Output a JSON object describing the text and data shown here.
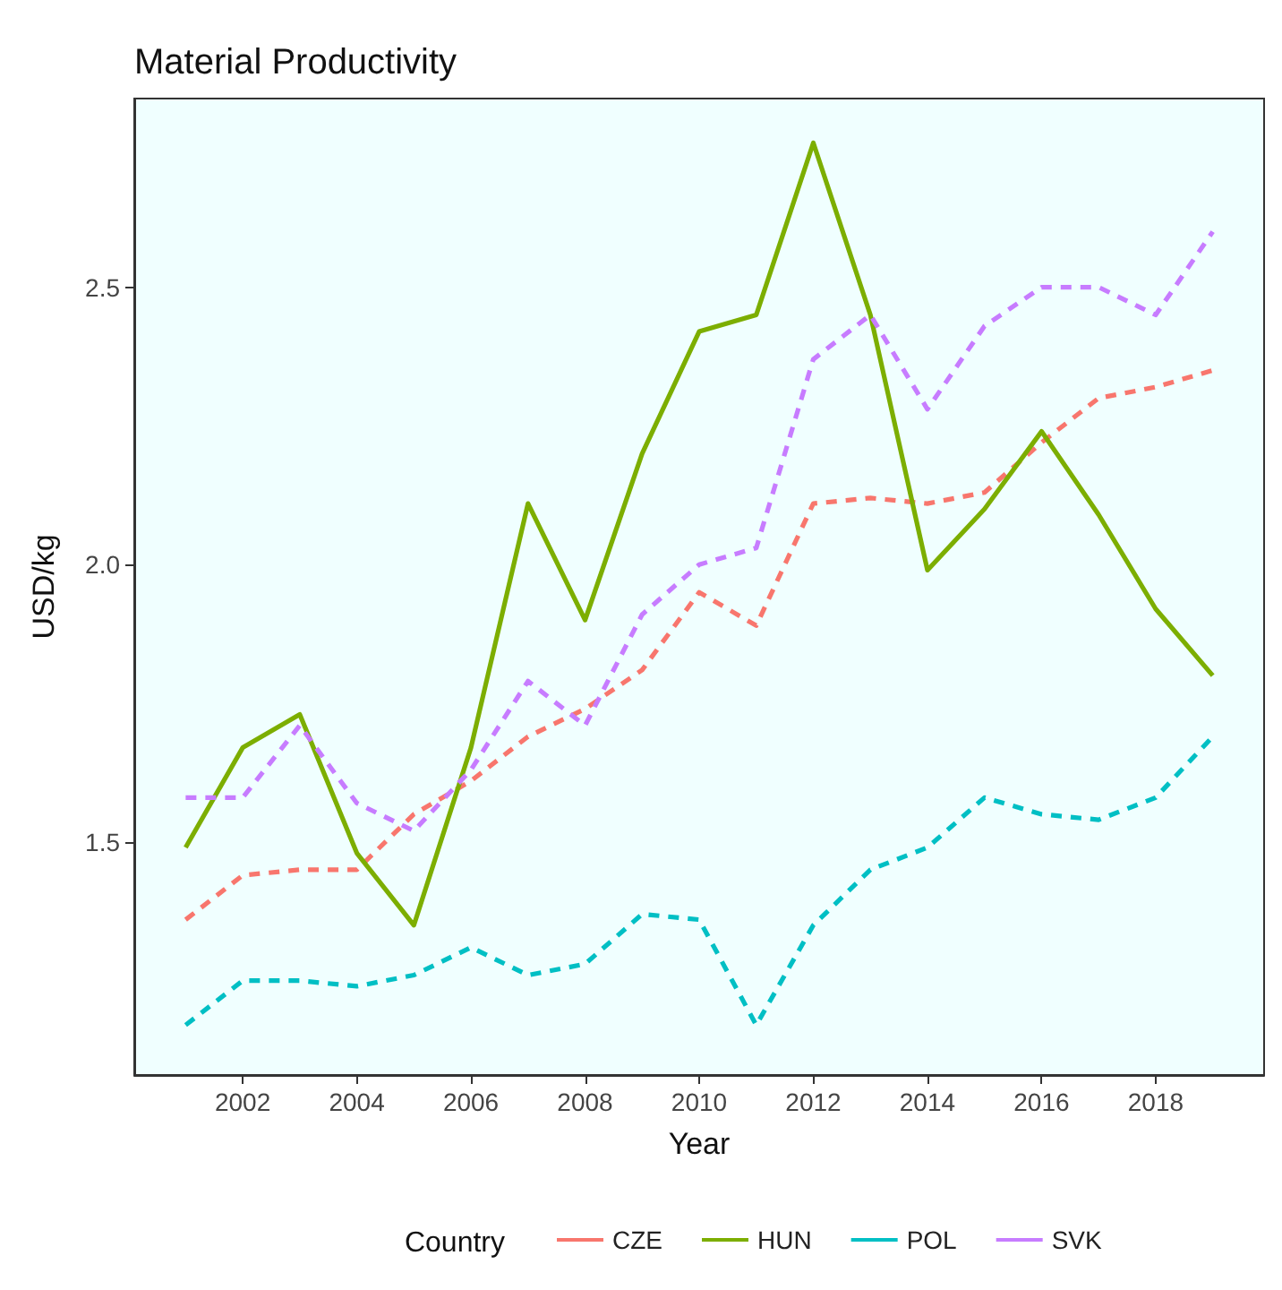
{
  "chart_data": {
    "type": "line",
    "title": "Material Productivity",
    "xlabel": "Year",
    "ylabel": "USD/kg",
    "legend_title": "Country",
    "x": [
      2001,
      2002,
      2003,
      2004,
      2005,
      2006,
      2007,
      2008,
      2009,
      2010,
      2011,
      2012,
      2013,
      2014,
      2015,
      2016,
      2017,
      2018,
      2019
    ],
    "series": [
      {
        "name": "CZE",
        "color": "#f8766d",
        "line_style": "dashed",
        "values": [
          1.36,
          1.44,
          1.45,
          1.45,
          1.55,
          1.61,
          1.69,
          1.74,
          1.81,
          1.95,
          1.89,
          2.11,
          2.12,
          2.11,
          2.13,
          2.22,
          2.3,
          2.32,
          2.35
        ]
      },
      {
        "name": "HUN",
        "color": "#7cae00",
        "line_style": "solid",
        "values": [
          1.49,
          1.67,
          1.73,
          1.48,
          1.35,
          1.67,
          2.11,
          1.9,
          2.2,
          2.42,
          2.45,
          2.76,
          2.45,
          1.99,
          2.1,
          2.24,
          2.09,
          1.92,
          1.8
        ]
      },
      {
        "name": "POL",
        "color": "#00bfc4",
        "line_style": "dashed",
        "values": [
          1.17,
          1.25,
          1.25,
          1.24,
          1.26,
          1.31,
          1.26,
          1.28,
          1.37,
          1.36,
          1.17,
          1.35,
          1.45,
          1.49,
          1.58,
          1.55,
          1.54,
          1.58,
          1.69
        ]
      },
      {
        "name": "SVK",
        "color": "#c77cff",
        "line_style": "dashed",
        "values": [
          1.58,
          1.58,
          1.71,
          1.57,
          1.52,
          1.63,
          1.79,
          1.71,
          1.91,
          2.0,
          2.03,
          2.37,
          2.45,
          2.28,
          2.43,
          2.5,
          2.5,
          2.45,
          2.6
        ]
      }
    ],
    "xlim": [
      2000.1,
      2019.9
    ],
    "xticks": [
      2002,
      2004,
      2006,
      2008,
      2010,
      2012,
      2014,
      2016,
      2018
    ],
    "ylim": [
      1.08,
      2.84
    ],
    "yticks": [
      {
        "value": 1.5,
        "label": "1.5"
      },
      {
        "value": 2,
        "label": "2.0"
      },
      {
        "value": 2.5,
        "label": "2.5"
      }
    ],
    "grid": false,
    "legend": "bottom",
    "marker": "none"
  }
}
